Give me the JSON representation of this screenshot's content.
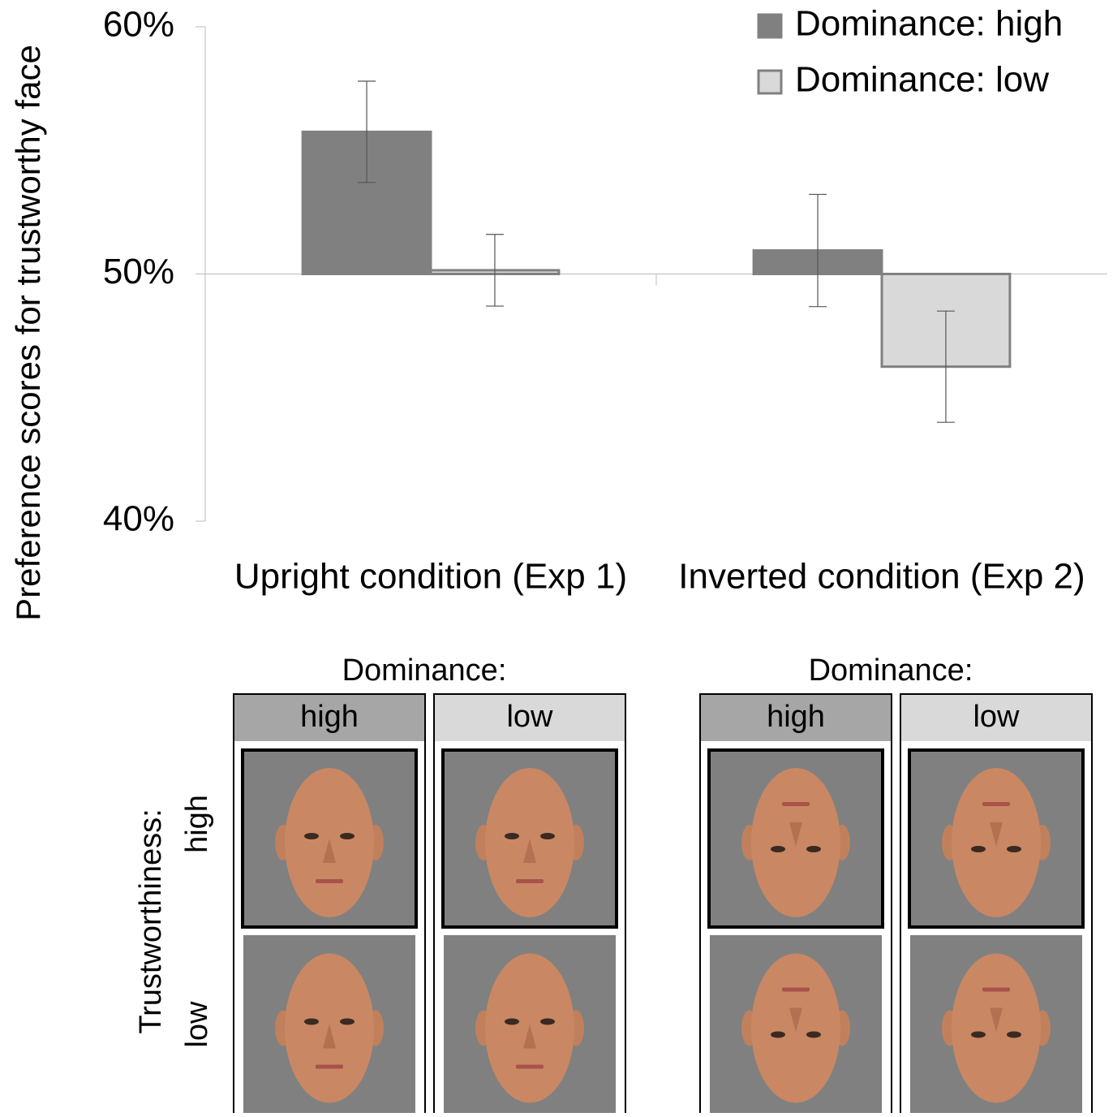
{
  "chart_data": {
    "type": "bar",
    "y_label": "Preference scores for trustworthy face",
    "categories": [
      "Upright condition (Exp 1)",
      "Inverted condition (Exp 2)"
    ],
    "series": [
      {
        "name": "Dominance: high",
        "color": "#808080",
        "values": [
          55.75,
          50.95
        ],
        "errors": [
          2.05,
          2.27
        ]
      },
      {
        "name": "Dominance: low",
        "color": "#d9d9d9",
        "values": [
          50.15,
          46.25
        ],
        "errors": [
          1.45,
          2.25
        ]
      }
    ],
    "baseline": 50,
    "ylim": [
      40,
      60
    ],
    "yticks": [
      {
        "value": 40,
        "label": "40%"
      },
      {
        "value": 50,
        "label": "50%"
      },
      {
        "value": 60,
        "label": "60%"
      }
    ],
    "legend": "top-right"
  },
  "face_panel": {
    "row_title": "Trustworthiness:",
    "rows": [
      "high",
      "low"
    ],
    "panels": [
      {
        "title": "Dominance:",
        "columns": [
          "high",
          "low"
        ]
      },
      {
        "title": "Dominance:",
        "columns": [
          "high",
          "low"
        ]
      }
    ]
  }
}
